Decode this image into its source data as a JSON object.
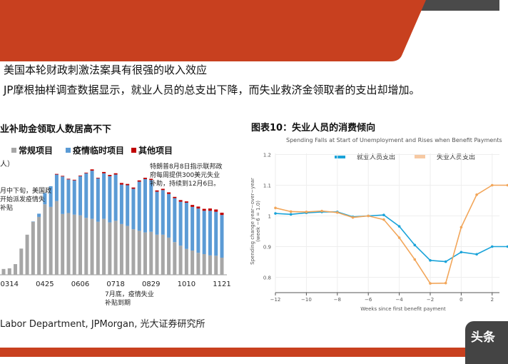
{
  "header": {
    "line1": "美国本轮财政刺激法案具有很强的收入效应",
    "line2": "JP摩根抽样调查数据显示，就业人员的总支出下降，而失业救济金领取者的支出却增加。"
  },
  "colors": {
    "banner": "#c8401f",
    "banner_dark": "#4a4a4a",
    "gray": "#a6a6a6",
    "blue": "#5b9bd5",
    "red": "#c00000",
    "line_blue": "#1aa3d9",
    "line_orange": "#f2a65a"
  },
  "left_chart_text": {
    "title": "业补助金领取人数居高不下",
    "unit": "人）",
    "annotation_march": [
      "月中下旬，美国政",
      "开始派发疫情失",
      "补贴"
    ],
    "annotation_aug": [
      "特朗普8月8日指示联邦政",
      "府每周提供300美元失业",
      "补助，持续到12月6日。"
    ],
    "annotation_july": [
      "7月底，疫情失业",
      "补贴到期"
    ],
    "source": "Labor Department, JPMorgan, 光大证券研究所"
  },
  "right_chart_text": {
    "title": "图表10：失业人员的消费倾向"
  },
  "logo_text": "头条",
  "chart_data": [
    {
      "type": "bar",
      "stacked": true,
      "legend": [
        "常规项目",
        "疫情临时项目",
        "其他项目"
      ],
      "tick_labels": [
        {
          "index": 1,
          "label": "0314"
        },
        {
          "index": 7,
          "label": "0425"
        },
        {
          "index": 13,
          "label": "0606"
        },
        {
          "index": 19,
          "label": "0718"
        },
        {
          "index": 25,
          "label": "0829"
        },
        {
          "index": 31,
          "label": "1010"
        },
        {
          "index": 37,
          "label": "1121"
        }
      ],
      "series": [
        {
          "name": "常规项目",
          "values": [
            1.8,
            2.0,
            3.3,
            8.1,
            12.4,
            16.4,
            17.9,
            21.8,
            21.0,
            22.8,
            18.8,
            19.1,
            18.6,
            18.4,
            17.6,
            17.3,
            16.4,
            17.3,
            16.2,
            16.7,
            15.7,
            15.1,
            14.1,
            13.6,
            13.1,
            13.3,
            12.4,
            12.4,
            11.5,
            10.1,
            9.0,
            8.0,
            7.5,
            6.8,
            6.4,
            6.0,
            5.9,
            5.3
          ]
        },
        {
          "name": "疫情临时项目",
          "values": [
            0,
            0,
            0,
            0,
            0,
            0.1,
            1.0,
            3.5,
            6.4,
            8.2,
            11.6,
            10.4,
            10.6,
            12.1,
            13.8,
            14.9,
            13.4,
            14.1,
            14.3,
            14.3,
            12.2,
            12.6,
            12.5,
            15.2,
            16.5,
            16.0,
            13.3,
            13.8,
            13.5,
            13.6,
            13.6,
            14.3,
            13.5,
            13.7,
            13.4,
            13.8,
            13.6,
            13.2
          ]
        },
        {
          "name": "其他项目",
          "values": [
            0,
            0,
            0,
            0,
            0,
            0,
            0,
            0,
            0,
            0.2,
            0.2,
            0.2,
            0.2,
            0.2,
            0.2,
            0.4,
            0.2,
            0.4,
            0.4,
            0.4,
            0.5,
            0.4,
            0.4,
            0.4,
            0.4,
            0.4,
            0.4,
            0.4,
            0.5,
            0.4,
            0.5,
            0.4,
            0.6,
            0.6,
            0.6,
            0.7,
            0.7,
            0.7
          ]
        }
      ]
    },
    {
      "type": "line",
      "title": "Spending Falls at Start of Unemployment and Rises when Benefit Payments",
      "xlabel": "Weeks since first benefit payment",
      "ylabel": "Spending change year-over-year (week -6 = 1.0)",
      "ylabel_lines": [
        "Spending change year−over−year",
        "(week −6 = 1.0)"
      ],
      "x_ticks": [
        "−12",
        "−10",
        "−8",
        "−6",
        "−4",
        "−2",
        "0",
        "2"
      ],
      "x_tick_values": [
        -12,
        -10,
        -8,
        -6,
        -4,
        -2,
        0,
        2
      ],
      "y_ticks": [
        "1.2",
        "1.1",
        "1",
        "0.9",
        "0.8"
      ],
      "y_tick_values": [
        1.2,
        1.1,
        1.0,
        0.9,
        0.8
      ],
      "xlim": [
        -12,
        3
      ],
      "ylim": [
        0.75,
        1.2
      ],
      "grid": true,
      "legend_position": "top",
      "x": [
        -12,
        -11,
        -10,
        -9,
        -8,
        -7,
        -6,
        -5,
        -4,
        -3,
        -2,
        -1,
        0,
        1,
        2,
        3
      ],
      "series": [
        {
          "name": "就业人员支出",
          "values": [
            1.008,
            1.005,
            1.01,
            1.013,
            1.013,
            0.997,
            1.0,
            1.003,
            0.966,
            0.905,
            0.855,
            0.851,
            0.882,
            0.875,
            0.9,
            0.9
          ]
        },
        {
          "name": "失业人员支出",
          "values": [
            1.026,
            1.014,
            1.013,
            1.016,
            1.011,
            0.995,
            1.0,
            0.988,
            0.929,
            0.858,
            0.78,
            0.781,
            0.963,
            1.069,
            1.1,
            1.1
          ]
        }
      ]
    }
  ]
}
